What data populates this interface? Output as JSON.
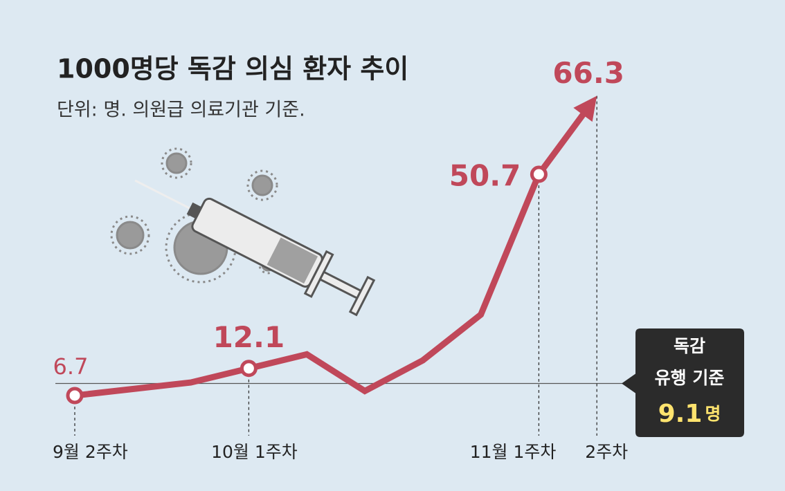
{
  "chart_data": {
    "type": "line",
    "title": "1000명당 독감 의심 환자 추이",
    "subtitle": "단위: 명. 의원급 의료기관 기준.",
    "categories": [
      "9월 2주차",
      null,
      null,
      "10월 1주차",
      null,
      null,
      null,
      null,
      "11월 1주차",
      "2주차"
    ],
    "values": [
      6.7,
      8.0,
      9.3,
      12.1,
      14.9,
      7.6,
      13.7,
      22.8,
      50.7,
      66.3
    ],
    "color": "#c0485a",
    "ylim": [
      0,
      80
    ],
    "threshold": {
      "label": [
        "독감",
        "유행 기준"
      ],
      "value": 9.1,
      "unit": "명"
    }
  }
}
